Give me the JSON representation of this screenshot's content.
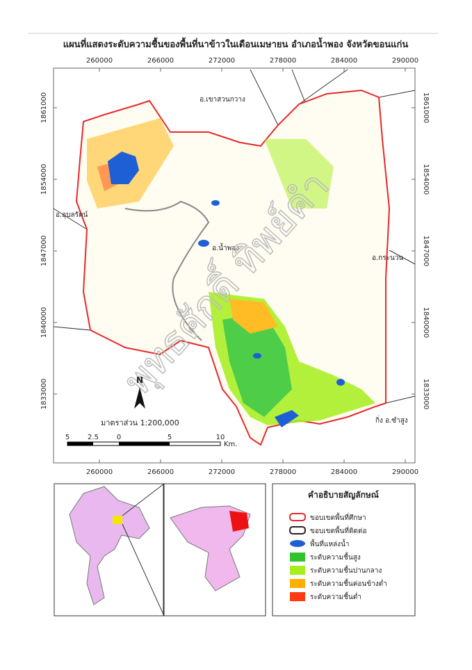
{
  "title": "แผนที่แสดงระดับความชื้นของพื้นที่นาข้าวในเดือนเมษายน อำเภอน้ำพอง จังหวัดขอนแก่น",
  "x_ticks": [
    260000,
    266000,
    272000,
    278000,
    284000,
    290000
  ],
  "y_ticks": [
    1861000,
    1854000,
    1847000,
    1840000,
    1833000
  ],
  "place_labels": [
    "อ.เขาสวนกวาง",
    "อ.อุบลรัตน์",
    "อ.น้ำพอง",
    "อ.กระนวน",
    "กิ่ง อ.ซำสูง"
  ],
  "watermark": "พุทธศักดิ์ ทิพย์คำ",
  "north": "N",
  "scale_text": "มาตราส่วน 1:200,000",
  "scale_labels": [
    "5",
    "2.5",
    "0",
    "5",
    "10",
    "Km."
  ],
  "legend": {
    "title": "คำอธิบายสัญลักษณ์",
    "items": [
      {
        "label": "ขอบเขตพื้นที่ศึกษา",
        "color": "#e8282b"
      },
      {
        "label": "ขอบเขตพื้นที่ติดต่อ",
        "color": "#222222"
      },
      {
        "label": "พื้นที่แหล่งน้ำ",
        "color": "#1f5fd6"
      },
      {
        "label": "ระดับความชื้นสูง",
        "color": "#2fc42a"
      },
      {
        "label": "ระดับความชื้นปานกลาง",
        "color": "#a6ee1c"
      },
      {
        "label": "ระดับความชื้นค่อนข้างต่ำ",
        "color": "#ffb000"
      },
      {
        "label": "ระดับความชื้นต่ำ",
        "color": "#ff3a10"
      }
    ]
  }
}
